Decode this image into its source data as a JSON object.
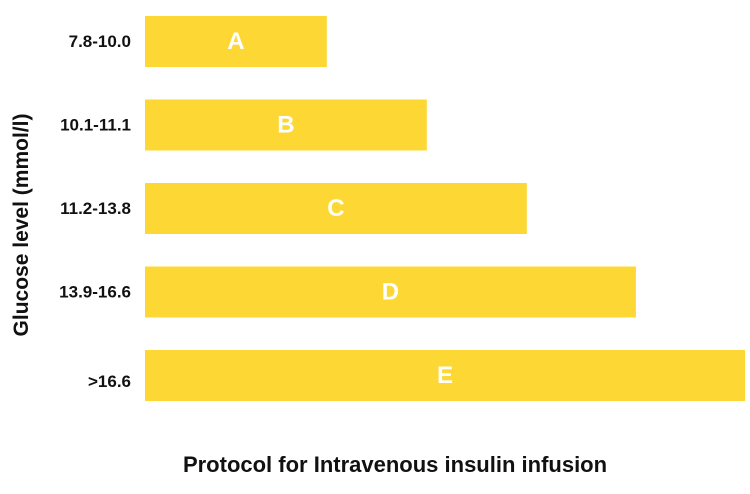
{
  "chart_data": {
    "type": "bar",
    "orientation": "horizontal",
    "categories": [
      "7.8-10.0",
      "10.1-11.1",
      "11.2-13.8",
      "13.9-16.6",
      ">16.6"
    ],
    "bar_labels": [
      "A",
      "B",
      "C",
      "D",
      "E"
    ],
    "values": [
      1,
      1.55,
      2.1,
      2.7,
      3.3
    ],
    "xlim": [
      0,
      3.3
    ],
    "xlabel": "Protocol for Intravenous insulin infusion",
    "ylabel": "Glucose level (mmol/l)",
    "grid": false,
    "legend": "none",
    "colors": {
      "bar": "#FDD835",
      "bar_label": "#FFFFFF",
      "tick_label": "#111111"
    }
  }
}
